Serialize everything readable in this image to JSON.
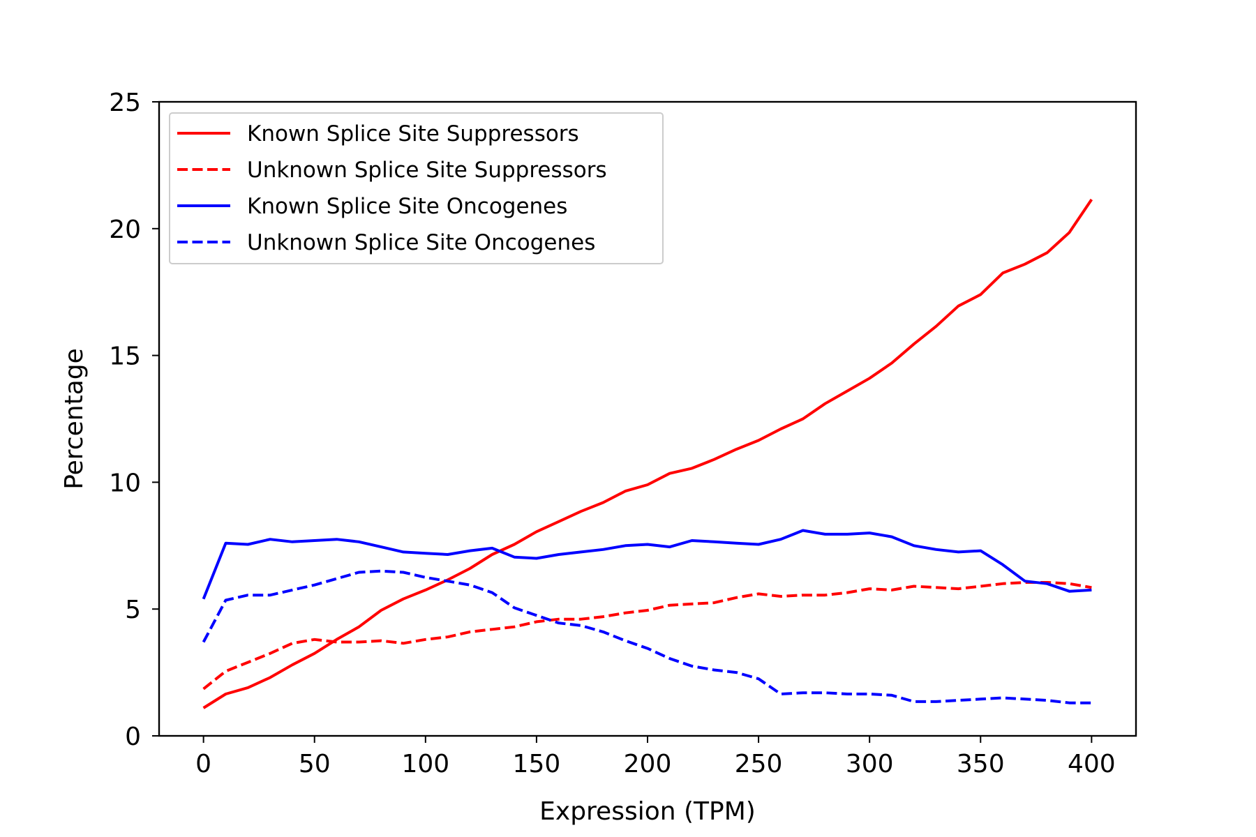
{
  "chart_data": {
    "type": "line",
    "title": "",
    "xlabel": "Expression (TPM)",
    "ylabel": "Percentage",
    "xlim": [
      -20,
      420
    ],
    "ylim": [
      0,
      25
    ],
    "xticks": [
      0,
      50,
      100,
      150,
      200,
      250,
      300,
      350,
      400
    ],
    "yticks": [
      0,
      5,
      10,
      15,
      20,
      25
    ],
    "grid": false,
    "legend_position": "upper-left",
    "x": [
      0,
      10,
      20,
      30,
      40,
      50,
      60,
      70,
      80,
      90,
      100,
      110,
      120,
      130,
      140,
      150,
      160,
      170,
      180,
      190,
      200,
      210,
      220,
      230,
      240,
      250,
      260,
      270,
      280,
      290,
      300,
      310,
      320,
      330,
      340,
      350,
      360,
      370,
      380,
      390,
      400
    ],
    "series": [
      {
        "name": "Known Splice Site Suppressors",
        "color": "#ff0000",
        "dash": "solid",
        "values": [
          1.1,
          1.65,
          1.9,
          2.3,
          2.8,
          3.25,
          3.8,
          4.3,
          4.95,
          5.4,
          5.75,
          6.15,
          6.6,
          7.15,
          7.55,
          8.05,
          8.45,
          8.85,
          9.2,
          9.65,
          9.9,
          10.35,
          10.55,
          10.9,
          11.3,
          11.65,
          12.1,
          12.5,
          13.1,
          13.6,
          14.1,
          14.7,
          15.45,
          16.15,
          16.95,
          17.4,
          18.25,
          18.6,
          19.05,
          19.85,
          21.15
        ]
      },
      {
        "name": "Unknown Splice Site Suppressors",
        "color": "#ff0000",
        "dash": "dashed",
        "values": [
          1.85,
          2.55,
          2.9,
          3.25,
          3.65,
          3.8,
          3.7,
          3.7,
          3.75,
          3.65,
          3.8,
          3.9,
          4.1,
          4.2,
          4.3,
          4.5,
          4.6,
          4.6,
          4.7,
          4.85,
          4.95,
          5.15,
          5.2,
          5.25,
          5.45,
          5.6,
          5.5,
          5.55,
          5.55,
          5.65,
          5.8,
          5.75,
          5.9,
          5.85,
          5.8,
          5.9,
          6.0,
          6.05,
          6.05,
          6.0,
          5.85
        ]
      },
      {
        "name": "Known Splice Site Oncogenes",
        "color": "#0000ff",
        "dash": "solid",
        "values": [
          5.4,
          7.6,
          7.55,
          7.75,
          7.65,
          7.7,
          7.75,
          7.65,
          7.45,
          7.25,
          7.2,
          7.15,
          7.3,
          7.4,
          7.05,
          7.0,
          7.15,
          7.25,
          7.35,
          7.5,
          7.55,
          7.45,
          7.7,
          7.65,
          7.6,
          7.55,
          7.75,
          8.1,
          7.95,
          7.95,
          8.0,
          7.85,
          7.5,
          7.35,
          7.25,
          7.3,
          6.75,
          6.1,
          6.0,
          5.7,
          5.75
        ]
      },
      {
        "name": "Unknown Splice Site Oncogenes",
        "color": "#0000ff",
        "dash": "dashed",
        "values": [
          3.7,
          5.35,
          5.55,
          5.55,
          5.75,
          5.95,
          6.2,
          6.45,
          6.5,
          6.45,
          6.25,
          6.1,
          5.95,
          5.65,
          5.05,
          4.75,
          4.45,
          4.35,
          4.1,
          3.75,
          3.45,
          3.05,
          2.75,
          2.6,
          2.5,
          2.25,
          1.65,
          1.7,
          1.7,
          1.65,
          1.65,
          1.6,
          1.35,
          1.35,
          1.4,
          1.45,
          1.5,
          1.45,
          1.4,
          1.3,
          1.3
        ]
      }
    ]
  }
}
